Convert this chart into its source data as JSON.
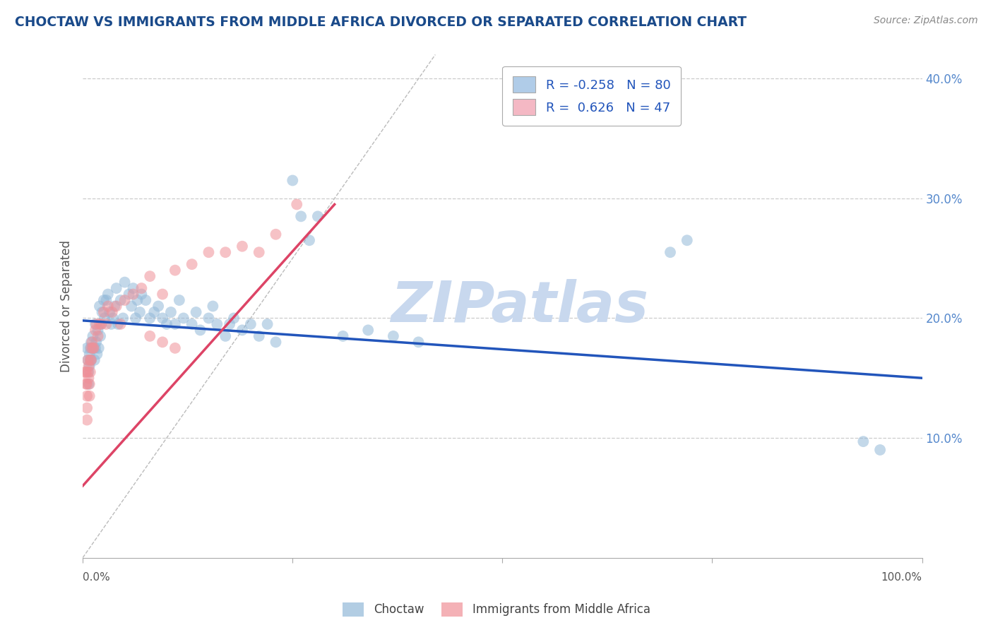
{
  "title": "CHOCTAW VS IMMIGRANTS FROM MIDDLE AFRICA DIVORCED OR SEPARATED CORRELATION CHART",
  "source_text": "Source: ZipAtlas.com",
  "ylabel": "Divorced or Separated",
  "xlim": [
    0.0,
    1.0
  ],
  "ylim": [
    0.0,
    0.42
  ],
  "yticks": [
    0.1,
    0.2,
    0.3,
    0.4
  ],
  "ytick_labels": [
    "10.0%",
    "20.0%",
    "30.0%",
    "40.0%"
  ],
  "watermark": "ZIPatlas",
  "watermark_color": "#c8d8ee",
  "blue_color": "#92b8d8",
  "pink_color": "#f09098",
  "blue_line_color": "#2255bb",
  "pink_line_color": "#dd4466",
  "title_color": "#1a4a8a",
  "axis_label_color": "#555555",
  "tick_color": "#5588cc",
  "grid_color": "#cccccc",
  "choctaw_points_x": [
    0.005,
    0.006,
    0.007,
    0.007,
    0.008,
    0.008,
    0.009,
    0.009,
    0.01,
    0.01,
    0.011,
    0.012,
    0.013,
    0.014,
    0.015,
    0.015,
    0.016,
    0.017,
    0.018,
    0.019,
    0.02,
    0.021,
    0.022,
    0.023,
    0.025,
    0.026,
    0.028,
    0.03,
    0.032,
    0.034,
    0.036,
    0.038,
    0.04,
    0.042,
    0.045,
    0.048,
    0.05,
    0.055,
    0.058,
    0.06,
    0.063,
    0.065,
    0.068,
    0.07,
    0.075,
    0.08,
    0.085,
    0.09,
    0.095,
    0.1,
    0.105,
    0.11,
    0.115,
    0.12,
    0.13,
    0.135,
    0.14,
    0.15,
    0.155,
    0.16,
    0.17,
    0.175,
    0.18,
    0.19,
    0.2,
    0.21,
    0.22,
    0.23,
    0.25,
    0.26,
    0.27,
    0.28,
    0.31,
    0.34,
    0.37,
    0.4,
    0.7,
    0.72,
    0.93,
    0.95
  ],
  "choctaw_points_y": [
    0.175,
    0.165,
    0.155,
    0.145,
    0.17,
    0.16,
    0.175,
    0.165,
    0.18,
    0.165,
    0.175,
    0.185,
    0.175,
    0.165,
    0.195,
    0.175,
    0.18,
    0.17,
    0.19,
    0.175,
    0.21,
    0.185,
    0.195,
    0.205,
    0.215,
    0.2,
    0.215,
    0.22,
    0.205,
    0.195,
    0.2,
    0.21,
    0.225,
    0.195,
    0.215,
    0.2,
    0.23,
    0.22,
    0.21,
    0.225,
    0.2,
    0.215,
    0.205,
    0.22,
    0.215,
    0.2,
    0.205,
    0.21,
    0.2,
    0.195,
    0.205,
    0.195,
    0.215,
    0.2,
    0.195,
    0.205,
    0.19,
    0.2,
    0.21,
    0.195,
    0.185,
    0.195,
    0.2,
    0.19,
    0.195,
    0.185,
    0.195,
    0.18,
    0.315,
    0.285,
    0.265,
    0.285,
    0.185,
    0.19,
    0.185,
    0.18,
    0.255,
    0.265,
    0.097,
    0.09
  ],
  "immig_points_x": [
    0.003,
    0.004,
    0.004,
    0.005,
    0.005,
    0.005,
    0.005,
    0.006,
    0.006,
    0.007,
    0.007,
    0.008,
    0.008,
    0.009,
    0.009,
    0.01,
    0.01,
    0.011,
    0.012,
    0.013,
    0.015,
    0.016,
    0.018,
    0.02,
    0.022,
    0.025,
    0.028,
    0.03,
    0.035,
    0.04,
    0.045,
    0.05,
    0.06,
    0.07,
    0.08,
    0.095,
    0.11,
    0.13,
    0.15,
    0.17,
    0.19,
    0.21,
    0.23,
    0.255,
    0.08,
    0.095,
    0.11
  ],
  "immig_points_y": [
    0.155,
    0.155,
    0.145,
    0.145,
    0.135,
    0.125,
    0.115,
    0.165,
    0.155,
    0.16,
    0.15,
    0.145,
    0.135,
    0.165,
    0.155,
    0.175,
    0.165,
    0.18,
    0.175,
    0.175,
    0.19,
    0.195,
    0.185,
    0.195,
    0.195,
    0.205,
    0.195,
    0.21,
    0.205,
    0.21,
    0.195,
    0.215,
    0.22,
    0.225,
    0.235,
    0.22,
    0.24,
    0.245,
    0.255,
    0.255,
    0.26,
    0.255,
    0.27,
    0.295,
    0.185,
    0.18,
    0.175
  ],
  "blue_line_x": [
    0.0,
    1.0
  ],
  "blue_line_y": [
    0.198,
    0.15
  ],
  "pink_line_x": [
    0.0,
    0.3
  ],
  "pink_line_y": [
    0.06,
    0.295
  ],
  "diag_line_x": [
    0.0,
    0.42
  ],
  "diag_line_y": [
    0.0,
    0.42
  ],
  "legend_label1": "R = -0.258   N = 80",
  "legend_label2": "R =  0.626   N = 47",
  "legend_box_color1": "#b0cce8",
  "legend_box_color2": "#f4b8c4",
  "legend_text_color": "#2255bb"
}
